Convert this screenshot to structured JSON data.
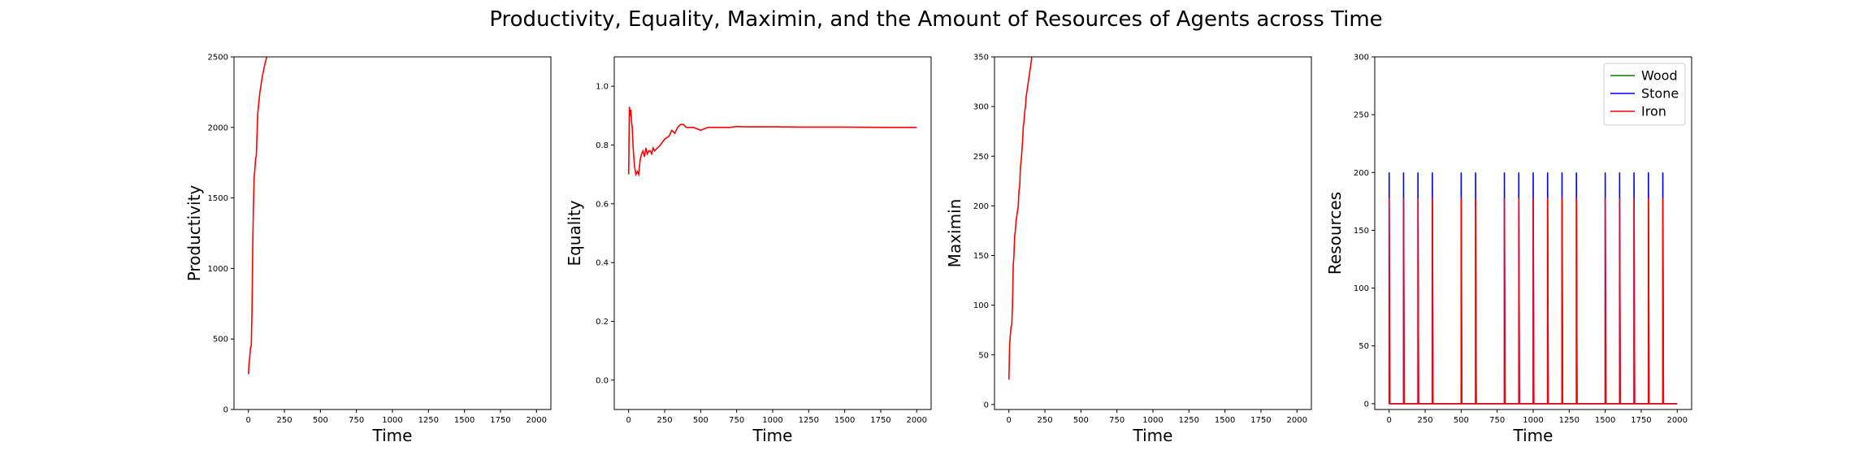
{
  "figure": {
    "suptitle": "Productivity, Equality, Maximin, and the Amount of Resources of Agents across Time"
  },
  "chart_data": [
    {
      "type": "line",
      "title": "",
      "xlabel": "Time",
      "ylabel": "Productivity",
      "xlim": [
        -100,
        2100
      ],
      "ylim": [
        0,
        2500
      ],
      "xticks": [
        0,
        250,
        500,
        750,
        1000,
        1250,
        1500,
        1750,
        2000
      ],
      "yticks": [
        0,
        500,
        1000,
        1500,
        2000,
        2500
      ],
      "grid": false,
      "series": [
        {
          "name": "",
          "color": "#ff0000",
          "x": [
            0,
            5,
            10,
            15,
            20,
            25,
            30,
            35,
            40,
            45,
            50,
            55,
            60,
            65,
            70,
            75,
            80,
            85,
            90,
            95,
            100,
            105,
            110,
            115,
            120,
            125,
            130
          ],
          "y": [
            250,
            330,
            380,
            440,
            450,
            700,
            1150,
            1450,
            1650,
            1700,
            1780,
            1800,
            1950,
            2100,
            2150,
            2200,
            2250,
            2280,
            2320,
            2350,
            2380,
            2400,
            2430,
            2450,
            2470,
            2490,
            2520
          ]
        }
      ]
    },
    {
      "type": "line",
      "title": "",
      "xlabel": "Time",
      "ylabel": "Equality",
      "xlim": [
        -100,
        2100
      ],
      "ylim": [
        -0.1,
        1.1
      ],
      "xticks": [
        0,
        250,
        500,
        750,
        1000,
        1250,
        1500,
        1750,
        2000
      ],
      "yticks": [
        0.0,
        0.2,
        0.4,
        0.6,
        0.8,
        1.0
      ],
      "grid": false,
      "series": [
        {
          "name": "",
          "color": "#ff0000",
          "x": [
            0,
            5,
            10,
            15,
            20,
            25,
            30,
            40,
            50,
            60,
            70,
            80,
            90,
            100,
            110,
            120,
            130,
            140,
            150,
            160,
            170,
            180,
            200,
            220,
            250,
            280,
            300,
            320,
            340,
            360,
            380,
            400,
            450,
            500,
            550,
            600,
            650,
            700,
            750,
            800,
            1000,
            1200,
            1500,
            1800,
            2000
          ],
          "y": [
            0.7,
            0.93,
            0.9,
            0.92,
            0.88,
            0.86,
            0.8,
            0.73,
            0.7,
            0.71,
            0.7,
            0.75,
            0.77,
            0.78,
            0.76,
            0.79,
            0.77,
            0.78,
            0.78,
            0.77,
            0.79,
            0.78,
            0.79,
            0.8,
            0.82,
            0.83,
            0.85,
            0.84,
            0.86,
            0.87,
            0.87,
            0.86,
            0.86,
            0.85,
            0.86,
            0.86,
            0.86,
            0.86,
            0.863,
            0.862,
            0.862,
            0.861,
            0.861,
            0.86,
            0.86
          ]
        }
      ]
    },
    {
      "type": "line",
      "title": "",
      "xlabel": "Time",
      "ylabel": "Maximin",
      "xlim": [
        -100,
        2100
      ],
      "ylim": [
        -5,
        350
      ],
      "xticks": [
        0,
        250,
        500,
        750,
        1000,
        1250,
        1500,
        1750,
        2000
      ],
      "yticks": [
        0,
        50,
        100,
        150,
        200,
        250,
        300,
        350
      ],
      "grid": false,
      "series": [
        {
          "name": "",
          "color": "#ff0000",
          "x": [
            0,
            5,
            10,
            15,
            20,
            25,
            30,
            35,
            40,
            45,
            50,
            55,
            60,
            65,
            70,
            75,
            80,
            85,
            90,
            95,
            100,
            105,
            110,
            115,
            120,
            125,
            130,
            135,
            140,
            145,
            150,
            155,
            160
          ],
          "y": [
            25,
            60,
            70,
            78,
            80,
            100,
            140,
            150,
            170,
            175,
            185,
            190,
            195,
            200,
            215,
            220,
            240,
            245,
            255,
            265,
            280,
            285,
            295,
            300,
            310,
            315,
            320,
            325,
            330,
            335,
            340,
            345,
            352
          ]
        }
      ]
    },
    {
      "type": "line",
      "title": "",
      "xlabel": "Time",
      "ylabel": "Resources",
      "xlim": [
        -100,
        2100
      ],
      "ylim": [
        -5,
        300
      ],
      "xticks": [
        0,
        250,
        500,
        750,
        1000,
        1250,
        1500,
        1750,
        2000
      ],
      "yticks": [
        0,
        50,
        100,
        150,
        200,
        250,
        300
      ],
      "grid": false,
      "legend": "top-right",
      "spike_times": [
        0,
        100,
        200,
        300,
        500,
        600,
        800,
        900,
        1000,
        1100,
        1200,
        1300,
        1500,
        1600,
        1700,
        1800,
        1900
      ],
      "baseline": 0,
      "series": [
        {
          "name": "Wood",
          "color": "#008000",
          "peak": 0
        },
        {
          "name": "Stone",
          "color": "#0000ff",
          "peak": 200
        },
        {
          "name": "Iron",
          "color": "#ff0000",
          "peak": 178
        }
      ],
      "x_end": 2000
    }
  ]
}
